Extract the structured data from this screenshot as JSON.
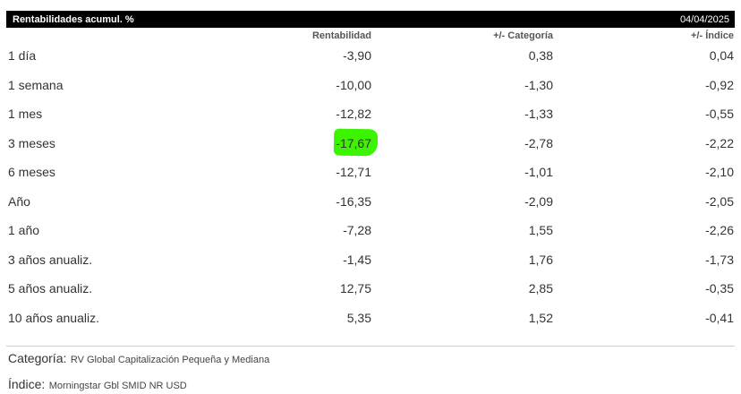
{
  "header": {
    "title": "Rentabilidades acumul. %",
    "date": "04/04/2025"
  },
  "columns": [
    "Rentabilidad",
    "+/- Categoría",
    "+/- Índice"
  ],
  "rows": [
    {
      "period": "1 día",
      "rentabilidad": "-3,90",
      "categoria": "0,38",
      "indice": "0,04"
    },
    {
      "period": "1 semana",
      "rentabilidad": "-10,00",
      "categoria": "-1,30",
      "indice": "-0,92"
    },
    {
      "period": "1 mes",
      "rentabilidad": "-12,82",
      "categoria": "-1,33",
      "indice": "-0,55"
    },
    {
      "period": "3 meses",
      "rentabilidad": "-17,67",
      "categoria": "-2,78",
      "indice": "-2,22"
    },
    {
      "period": "6 meses",
      "rentabilidad": "-12,71",
      "categoria": "-1,01",
      "indice": "-2,10"
    },
    {
      "period": "Año",
      "rentabilidad": "-16,35",
      "categoria": "-2,09",
      "indice": "-2,05"
    },
    {
      "period": "1 año",
      "rentabilidad": "-7,28",
      "categoria": "1,55",
      "indice": "-2,26"
    },
    {
      "period": "3 años anualiz.",
      "rentabilidad": "-1,45",
      "categoria": "1,76",
      "indice": "-1,73"
    },
    {
      "period": "5 años anualiz.",
      "rentabilidad": "12,75",
      "categoria": "2,85",
      "indice": "-0,35"
    },
    {
      "period": "10 años anualiz.",
      "rentabilidad": "5,35",
      "categoria": "1,52",
      "indice": "-0,41"
    }
  ],
  "highlight": {
    "row": 3,
    "column": "rentabilidad",
    "color": "#3cf400"
  },
  "footer": {
    "categoria_label": "Categoría:",
    "categoria_value": "RV Global Capitalización Pequeña y Mediana",
    "indice_label": "Índice:",
    "indice_value": "Morningstar Gbl SMID NR USD"
  }
}
